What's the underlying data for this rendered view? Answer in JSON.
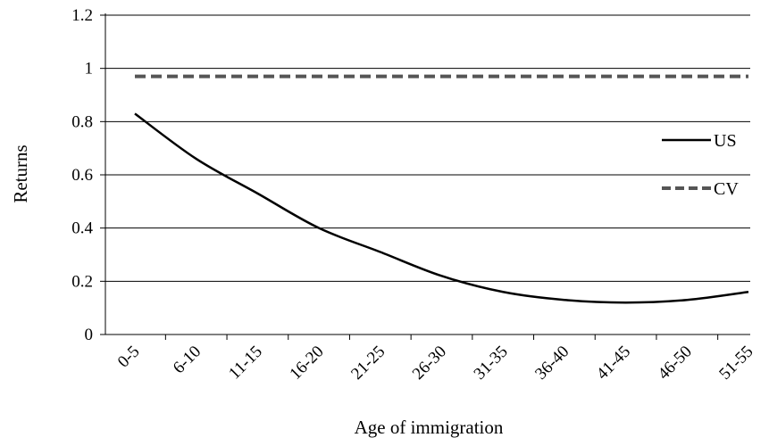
{
  "chart_data": {
    "type": "line",
    "title": "",
    "xlabel": "Age of immigration",
    "ylabel": "Returns",
    "categories": [
      "0-5",
      "6-10",
      "11-15",
      "16-20",
      "21-25",
      "26-30",
      "31-35",
      "36-40",
      "41-45",
      "46-50",
      "51-55"
    ],
    "y_ticks": [
      "0",
      "0.2",
      "0.4",
      "0.6",
      "0.8",
      "1",
      "1.2"
    ],
    "ylim": [
      0,
      1.2
    ],
    "grid": true,
    "legend_position": "right",
    "series": [
      {
        "name": "US",
        "style": "solid",
        "color": "#000000",
        "values": [
          0.83,
          0.66,
          0.53,
          0.4,
          0.31,
          0.22,
          0.16,
          0.13,
          0.12,
          0.13,
          0.16
        ]
      },
      {
        "name": "CV",
        "style": "dashed",
        "color": "#555555",
        "values": [
          0.97,
          0.97,
          0.97,
          0.97,
          0.97,
          0.97,
          0.97,
          0.97,
          0.97,
          0.97,
          0.97
        ]
      }
    ]
  }
}
